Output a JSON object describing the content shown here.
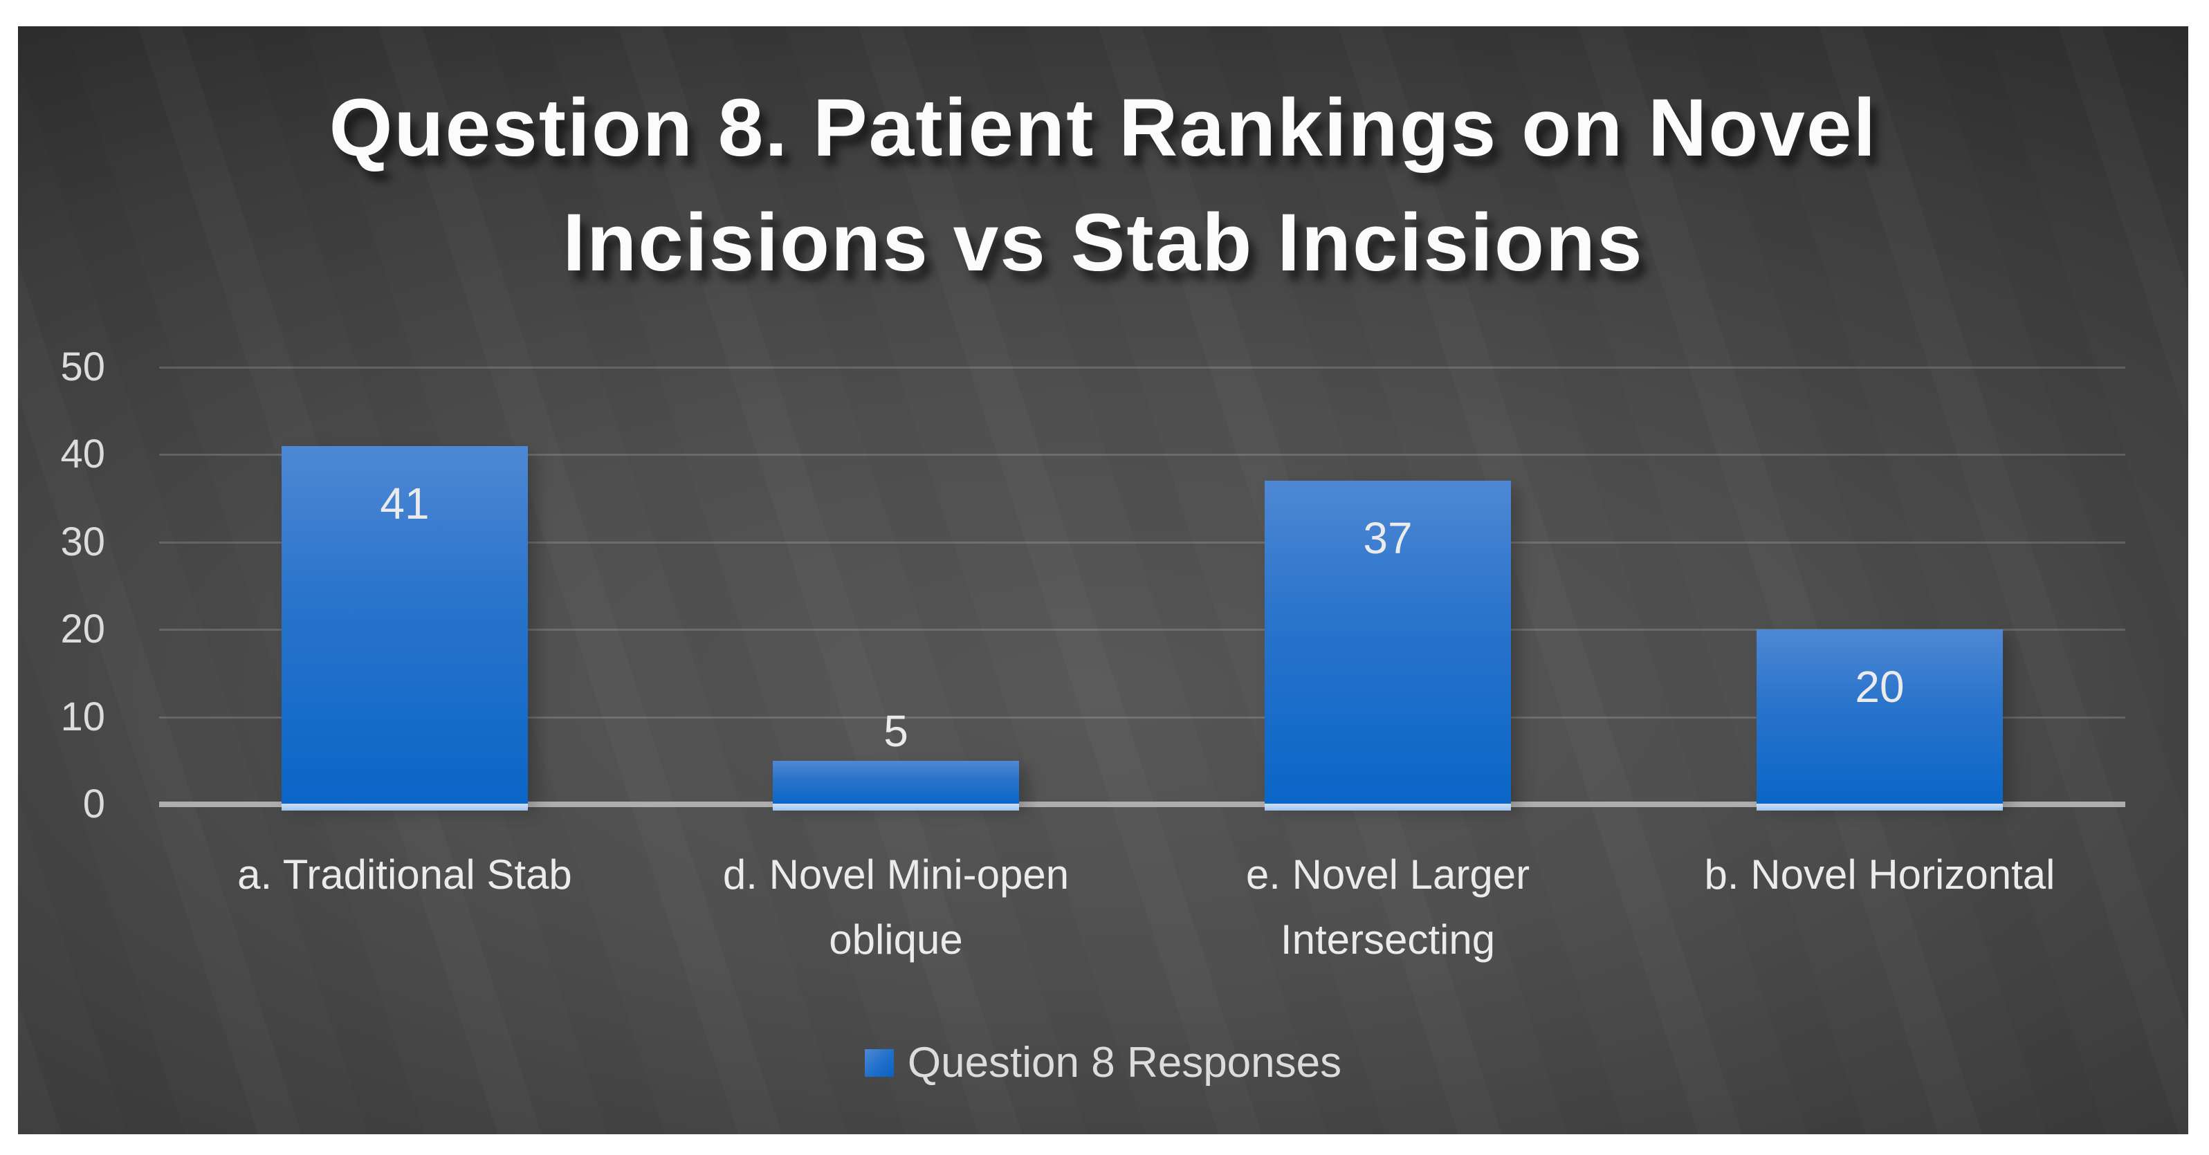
{
  "title": {
    "full": "Question 8. Patient Rankings on Novel Incisions vs Stab Incisions",
    "line1": "Question 8. Patient Rankings on Novel",
    "line2": "Incisions vs Stab Incisions"
  },
  "legend": {
    "label": "Question 8 Responses",
    "marker_icon": "legend-square-icon"
  },
  "colors": {
    "page_background": "#ffffff",
    "panel_center": "#585858",
    "panel_edge": "#1d1d1d",
    "bar_gradient_top": "#4e88d4",
    "bar_gradient_bottom": "#0a66c8",
    "bar_base_glow": "#b9d3f2",
    "gridline": "rgba(255,255,255,0.16)",
    "axis_line": "#aeaeae",
    "text_light": "#ebebeb",
    "tick_text": "#dcdcdc",
    "title_text": "#fbfbfb"
  },
  "chart_data": {
    "type": "bar",
    "title": "Question 8. Patient Rankings on Novel Incisions vs Stab Incisions",
    "categories": [
      "a. Traditional Stab",
      "d. Novel Mini-open oblique",
      "e. Novel Larger Intersecting",
      "b. Novel Horizontal"
    ],
    "category_lines": [
      [
        "a. Traditional Stab"
      ],
      [
        "d. Novel Mini-open",
        "oblique"
      ],
      [
        "e. Novel Larger",
        "Intersecting"
      ],
      [
        "b. Novel Horizontal"
      ]
    ],
    "series": [
      {
        "name": "Question 8 Responses",
        "values": [
          41,
          5,
          37,
          20
        ]
      }
    ],
    "values": [
      41,
      5,
      37,
      20
    ],
    "value_labels": [
      "41",
      "5",
      "37",
      "20"
    ],
    "value_label_placement": [
      "inside-top",
      "above",
      "inside-top",
      "inside-top"
    ],
    "xlabel": "",
    "ylabel": "",
    "y_ticks": [
      0,
      10,
      20,
      30,
      40,
      50
    ],
    "ylim": [
      0,
      50
    ],
    "grid": true,
    "legend_position": "bottom"
  }
}
